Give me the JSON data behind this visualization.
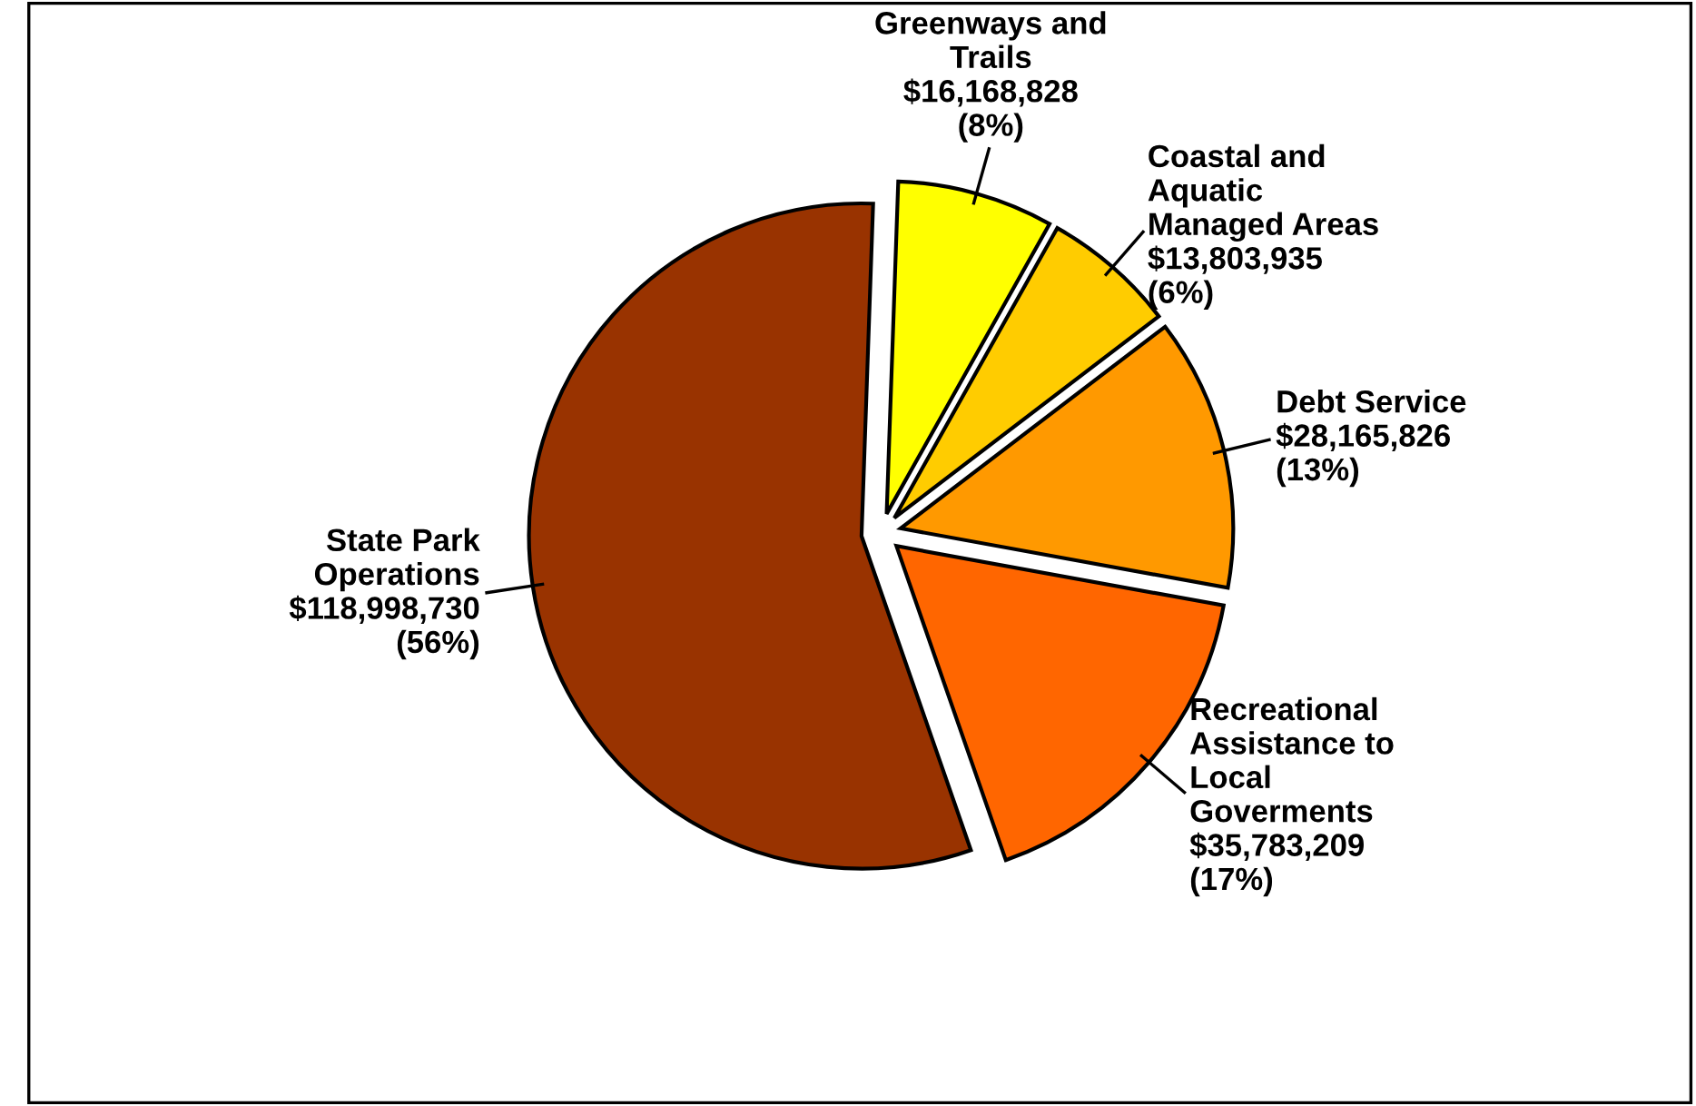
{
  "chart_data": {
    "type": "pie",
    "categories": [
      "Greenways and\nTrails",
      "Coastal and\nAquatic\nManaged Areas",
      "Debt Service",
      "Recreational\nAssistance to\nLocal\nGoverments",
      "State Park\nOperations"
    ],
    "values": [
      16168828,
      13803935,
      28165826,
      35783209,
      118998730
    ],
    "value_labels": [
      "$16,168,828\n(8%)",
      "$13,803,935\n(6%)",
      "$28,165,826\n(13%)",
      "$35,783,209\n(17%)",
      "$118,998,730\n(56%)"
    ],
    "colors": [
      "#ffff00",
      "#ffcc00",
      "#ff9900",
      "#ff6600",
      "#993300"
    ],
    "legend": false
  }
}
